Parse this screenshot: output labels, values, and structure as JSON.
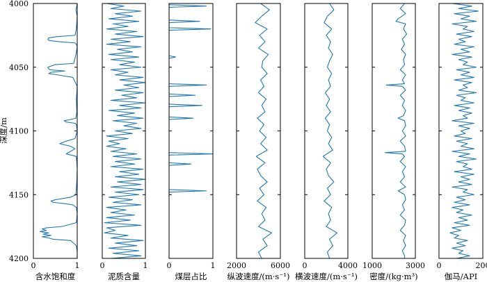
{
  "chart_data": {
    "type": "line",
    "layout": "multi-panel well log",
    "grid": false,
    "line_color": "#1f77b4",
    "y_axis": {
      "label": "深度/m",
      "range": [
        4000,
        4200
      ],
      "inverted": true,
      "ticks": [
        4000,
        4050,
        4100,
        4150,
        4200
      ],
      "tick_labels": [
        "4000",
        "4050",
        "4100",
        "4150",
        "4200"
      ]
    },
    "tracks": [
      {
        "id": "sw",
        "xlabel": "含水饱和度",
        "xlim": [
          0,
          1
        ],
        "ticks": [
          0,
          1
        ],
        "tick_labels": [
          "0",
          "1"
        ],
        "depth": [
          4000,
          4005,
          4010,
          4020,
          4025,
          4026,
          4027,
          4028,
          4029,
          4030,
          4031,
          4032,
          4034,
          4040,
          4047,
          4048,
          4050,
          4051,
          4052,
          4053,
          4054,
          4055,
          4056,
          4058,
          4065,
          4075,
          4085,
          4090,
          4091,
          4092,
          4093,
          4094,
          4095,
          4100,
          4106,
          4108,
          4110,
          4112,
          4114,
          4118,
          4120,
          4130,
          4140,
          4150,
          4152,
          4154,
          4155,
          4156,
          4157,
          4158,
          4160,
          4165,
          4172,
          4175,
          4176,
          4177,
          4178,
          4179,
          4180,
          4181,
          4182,
          4183,
          4184,
          4185,
          4186,
          4190,
          4195,
          4200
        ],
        "values": [
          1,
          0.97,
          1,
          0.98,
          0.95,
          0.55,
          0.35,
          0.33,
          0.35,
          0.6,
          0.95,
          0.98,
          1,
          0.97,
          0.92,
          0.5,
          0.33,
          0.34,
          0.38,
          0.72,
          0.4,
          0.35,
          0.55,
          0.9,
          1,
          0.98,
          0.99,
          0.97,
          0.85,
          0.7,
          0.75,
          0.95,
          0.98,
          1,
          0.95,
          0.75,
          0.6,
          0.85,
          0.95,
          0.75,
          0.98,
          1,
          0.99,
          0.97,
          0.85,
          0.5,
          0.4,
          0.45,
          0.7,
          0.9,
          0.98,
          1,
          0.98,
          0.65,
          0.3,
          0.2,
          0.3,
          0.15,
          0.35,
          0.22,
          0.4,
          0.2,
          0.35,
          0.45,
          0.85,
          0.98,
          1,
          1
        ]
      },
      {
        "id": "vsh",
        "xlabel": "泥质含量",
        "xlim": [
          0,
          1
        ],
        "ticks": [
          0,
          1
        ],
        "tick_labels": [
          "0",
          "1"
        ],
        "depth": [
          4000,
          4002,
          4004,
          4006,
          4008,
          4010,
          4012,
          4014,
          4016,
          4018,
          4020,
          4022,
          4024,
          4026,
          4028,
          4030,
          4032,
          4034,
          4036,
          4038,
          4040,
          4042,
          4044,
          4046,
          4048,
          4050,
          4052,
          4054,
          4056,
          4058,
          4060,
          4062,
          4064,
          4066,
          4068,
          4070,
          4072,
          4074,
          4076,
          4078,
          4080,
          4082,
          4084,
          4086,
          4088,
          4090,
          4092,
          4094,
          4096,
          4098,
          4100,
          4102,
          4104,
          4106,
          4108,
          4110,
          4112,
          4114,
          4116,
          4118,
          4120,
          4122,
          4124,
          4126,
          4128,
          4130,
          4132,
          4134,
          4136,
          4138,
          4140,
          4142,
          4144,
          4146,
          4148,
          4150,
          4152,
          4154,
          4156,
          4158,
          4160,
          4162,
          4164,
          4166,
          4168,
          4170,
          4172,
          4174,
          4176,
          4178,
          4180,
          4182,
          4184,
          4186,
          4188,
          4190,
          4192,
          4194,
          4196,
          4198,
          4200
        ],
        "values": [
          0.1,
          0.5,
          0.2,
          0.9,
          0.3,
          0.7,
          0.15,
          0.85,
          0.25,
          0.6,
          0.1,
          0.8,
          0.3,
          0.95,
          0.2,
          0.65,
          0.1,
          0.9,
          0.35,
          0.7,
          0.15,
          0.85,
          0.2,
          0.75,
          0.4,
          0.9,
          0.2,
          0.6,
          0.3,
          0.95,
          0.4,
          1.0,
          0.5,
          0.85,
          0.3,
          0.95,
          0.45,
          0.8,
          0.2,
          1.0,
          0.4,
          0.9,
          0.15,
          0.75,
          0.35,
          0.95,
          0.25,
          0.8,
          0.5,
          0.9,
          0.3,
          0.7,
          0.1,
          0.6,
          0.15,
          0.4,
          0.1,
          0.55,
          0.2,
          0.8,
          0.25,
          0.9,
          0.3,
          0.75,
          0.2,
          0.95,
          0.4,
          0.85,
          0.3,
          1.0,
          0.35,
          0.9,
          0.2,
          0.95,
          0.3,
          0.85,
          0.15,
          0.7,
          0.25,
          0.9,
          0.1,
          0.55,
          0.2,
          0.75,
          0.1,
          0.65,
          0.05,
          0.9,
          0.1,
          0.3,
          0.05,
          0.6,
          0.2,
          0.95,
          0.3,
          0.8,
          0.15,
          0.85,
          0.25,
          0.9,
          0.2
        ]
      },
      {
        "id": "coal",
        "xlabel": "煤层占比",
        "xlim": [
          0,
          1
        ],
        "ticks": [
          0,
          1
        ],
        "tick_labels": [
          "0",
          "1"
        ],
        "depth": [
          4000,
          4001,
          4002,
          4003,
          4004,
          4012,
          4013,
          4014,
          4015,
          4016,
          4018,
          4019,
          4020,
          4021,
          4022,
          4040,
          4041,
          4042,
          4043,
          4062,
          4063,
          4064,
          4065,
          4066,
          4070,
          4071,
          4072,
          4073,
          4074,
          4078,
          4079,
          4080,
          4081,
          4082,
          4088,
          4089,
          4090,
          4091,
          4092,
          4116,
          4117,
          4118,
          4119,
          4120,
          4124,
          4125,
          4126,
          4127,
          4128,
          4145,
          4146,
          4147,
          4148,
          4149,
          4200
        ],
        "values": [
          0,
          0,
          0.85,
          0,
          0,
          0,
          0,
          0.7,
          0,
          0,
          0,
          0,
          0.95,
          0,
          0,
          0,
          0,
          0.15,
          0,
          0,
          0,
          0.85,
          0,
          0,
          0,
          0,
          0.6,
          0,
          0,
          0,
          0,
          0.75,
          0,
          0,
          0,
          0,
          0.55,
          0,
          0,
          0,
          0,
          1.0,
          0,
          0,
          0,
          0,
          0.5,
          0,
          0,
          0,
          0,
          0.85,
          0,
          0,
          0
        ]
      },
      {
        "id": "vp",
        "xlabel": "纵波速度/(m·s⁻¹)",
        "xlim": [
          2000,
          6000
        ],
        "ticks": [
          2000,
          6000
        ],
        "tick_labels": [
          "2000",
          "6000"
        ],
        "depth": [
          4000,
          4005,
          4010,
          4015,
          4020,
          4025,
          4030,
          4035,
          4040,
          4045,
          4050,
          4055,
          4060,
          4065,
          4070,
          4075,
          4080,
          4085,
          4090,
          4095,
          4100,
          4105,
          4110,
          4115,
          4120,
          4125,
          4130,
          4135,
          4140,
          4145,
          4150,
          4155,
          4160,
          4165,
          4170,
          4175,
          4180,
          4185,
          4190,
          4195,
          4200
        ],
        "values": [
          4200,
          5000,
          4300,
          3700,
          4800,
          4100,
          4600,
          4000,
          4900,
          4400,
          4300,
          4800,
          4200,
          4500,
          4000,
          4700,
          4300,
          4600,
          3900,
          4500,
          4100,
          4700,
          4200,
          4800,
          3800,
          4600,
          3900,
          4200,
          4800,
          4100,
          4500,
          3900,
          4700,
          4300,
          4600,
          4000,
          5200,
          4400,
          4800,
          4000,
          4300
        ]
      },
      {
        "id": "vs",
        "xlabel": "横波速度/(m·s⁻¹)",
        "xlim": [
          0,
          4000
        ],
        "ticks": [
          0,
          4000
        ],
        "tick_labels": [
          "0",
          "4000"
        ],
        "depth": [
          4000,
          4005,
          4010,
          4015,
          4020,
          4025,
          4030,
          4035,
          4040,
          4045,
          4050,
          4055,
          4060,
          4065,
          4070,
          4075,
          4080,
          4085,
          4090,
          4095,
          4100,
          4105,
          4110,
          4115,
          4120,
          4125,
          4130,
          4135,
          4140,
          4145,
          4150,
          4155,
          4160,
          4165,
          4170,
          4175,
          4180,
          4185,
          4190,
          4195,
          4200
        ],
        "values": [
          2300,
          2700,
          2100,
          1800,
          2500,
          2000,
          2400,
          2200,
          2600,
          2300,
          2100,
          2500,
          2200,
          2400,
          1900,
          2300,
          2000,
          2400,
          1900,
          2300,
          2100,
          2500,
          2200,
          2600,
          1700,
          2400,
          2000,
          2200,
          2700,
          2100,
          2400,
          1800,
          2500,
          2200,
          2400,
          2000,
          3000,
          2300,
          2600,
          2100,
          2300
        ]
      },
      {
        "id": "den",
        "xlabel": "密度/(kg·m³)",
        "xlim": [
          1000,
          3000
        ],
        "ticks": [
          1000,
          3000
        ],
        "tick_labels": [
          "1000",
          "3000"
        ],
        "depth": [
          4000,
          4004,
          4008,
          4012,
          4014,
          4016,
          4020,
          4024,
          4028,
          4032,
          4036,
          4040,
          4044,
          4048,
          4052,
          4056,
          4060,
          4063,
          4064,
          4065,
          4068,
          4072,
          4076,
          4080,
          4084,
          4088,
          4090,
          4092,
          4096,
          4100,
          4104,
          4108,
          4112,
          4116,
          4117,
          4118,
          4120,
          4124,
          4128,
          4132,
          4136,
          4140,
          4144,
          4147,
          4150,
          4154,
          4158,
          4162,
          4166,
          4170,
          4174,
          4178,
          4182,
          4186,
          4190,
          4194,
          4198,
          4200
        ],
        "values": [
          2500,
          2300,
          2550,
          2200,
          2100,
          2550,
          2450,
          2600,
          2400,
          2500,
          2350,
          2550,
          2450,
          2500,
          2300,
          2550,
          2400,
          2500,
          1650,
          2400,
          2550,
          2300,
          2500,
          2400,
          2550,
          2450,
          2200,
          2500,
          2550,
          2400,
          2550,
          2300,
          2500,
          2550,
          1600,
          2400,
          2500,
          2300,
          2550,
          2400,
          2500,
          2300,
          2550,
          2200,
          2500,
          2550,
          2400,
          2500,
          2300,
          2550,
          2500,
          2300,
          2550,
          2450,
          2550,
          2400,
          2500,
          2500
        ]
      },
      {
        "id": "gr",
        "xlabel": "伽马/API",
        "xlim": [
          0,
          200
        ],
        "ticks": [
          0,
          200
        ],
        "tick_labels": [
          "0",
          "200"
        ],
        "depth": [
          4000,
          4002,
          4004,
          4006,
          4008,
          4010,
          4012,
          4014,
          4016,
          4018,
          4020,
          4022,
          4024,
          4026,
          4028,
          4030,
          4032,
          4034,
          4036,
          4038,
          4040,
          4042,
          4044,
          4046,
          4048,
          4050,
          4052,
          4054,
          4056,
          4058,
          4060,
          4062,
          4064,
          4066,
          4068,
          4070,
          4072,
          4074,
          4076,
          4078,
          4080,
          4082,
          4084,
          4086,
          4088,
          4090,
          4092,
          4094,
          4096,
          4098,
          4100,
          4102,
          4104,
          4106,
          4108,
          4110,
          4112,
          4114,
          4116,
          4118,
          4120,
          4122,
          4124,
          4126,
          4128,
          4130,
          4132,
          4134,
          4136,
          4138,
          4140,
          4142,
          4144,
          4146,
          4148,
          4150,
          4152,
          4154,
          4156,
          4158,
          4160,
          4162,
          4164,
          4166,
          4168,
          4170,
          4172,
          4174,
          4176,
          4178,
          4180,
          4182,
          4184,
          4186,
          4188,
          4190,
          4192,
          4194,
          4196,
          4198,
          4200
        ],
        "values": [
          60,
          150,
          90,
          180,
          70,
          140,
          100,
          170,
          60,
          130,
          110,
          160,
          80,
          150,
          90,
          120,
          70,
          160,
          100,
          140,
          60,
          150,
          90,
          130,
          110,
          170,
          80,
          140,
          100,
          160,
          70,
          150,
          110,
          130,
          90,
          170,
          80,
          120,
          100,
          160,
          70,
          140,
          90,
          150,
          110,
          130,
          60,
          160,
          90,
          140,
          100,
          120,
          70,
          150,
          80,
          130,
          100,
          160,
          60,
          140,
          90,
          170,
          80,
          130,
          110,
          150,
          70,
          160,
          100,
          140,
          90,
          150,
          60,
          130,
          110,
          160,
          80,
          120,
          70,
          140,
          60,
          110,
          80,
          150,
          90,
          130,
          70,
          140,
          60,
          100,
          50,
          90,
          70,
          130,
          80,
          120,
          60,
          110,
          90,
          140,
          80
        ]
      }
    ]
  }
}
